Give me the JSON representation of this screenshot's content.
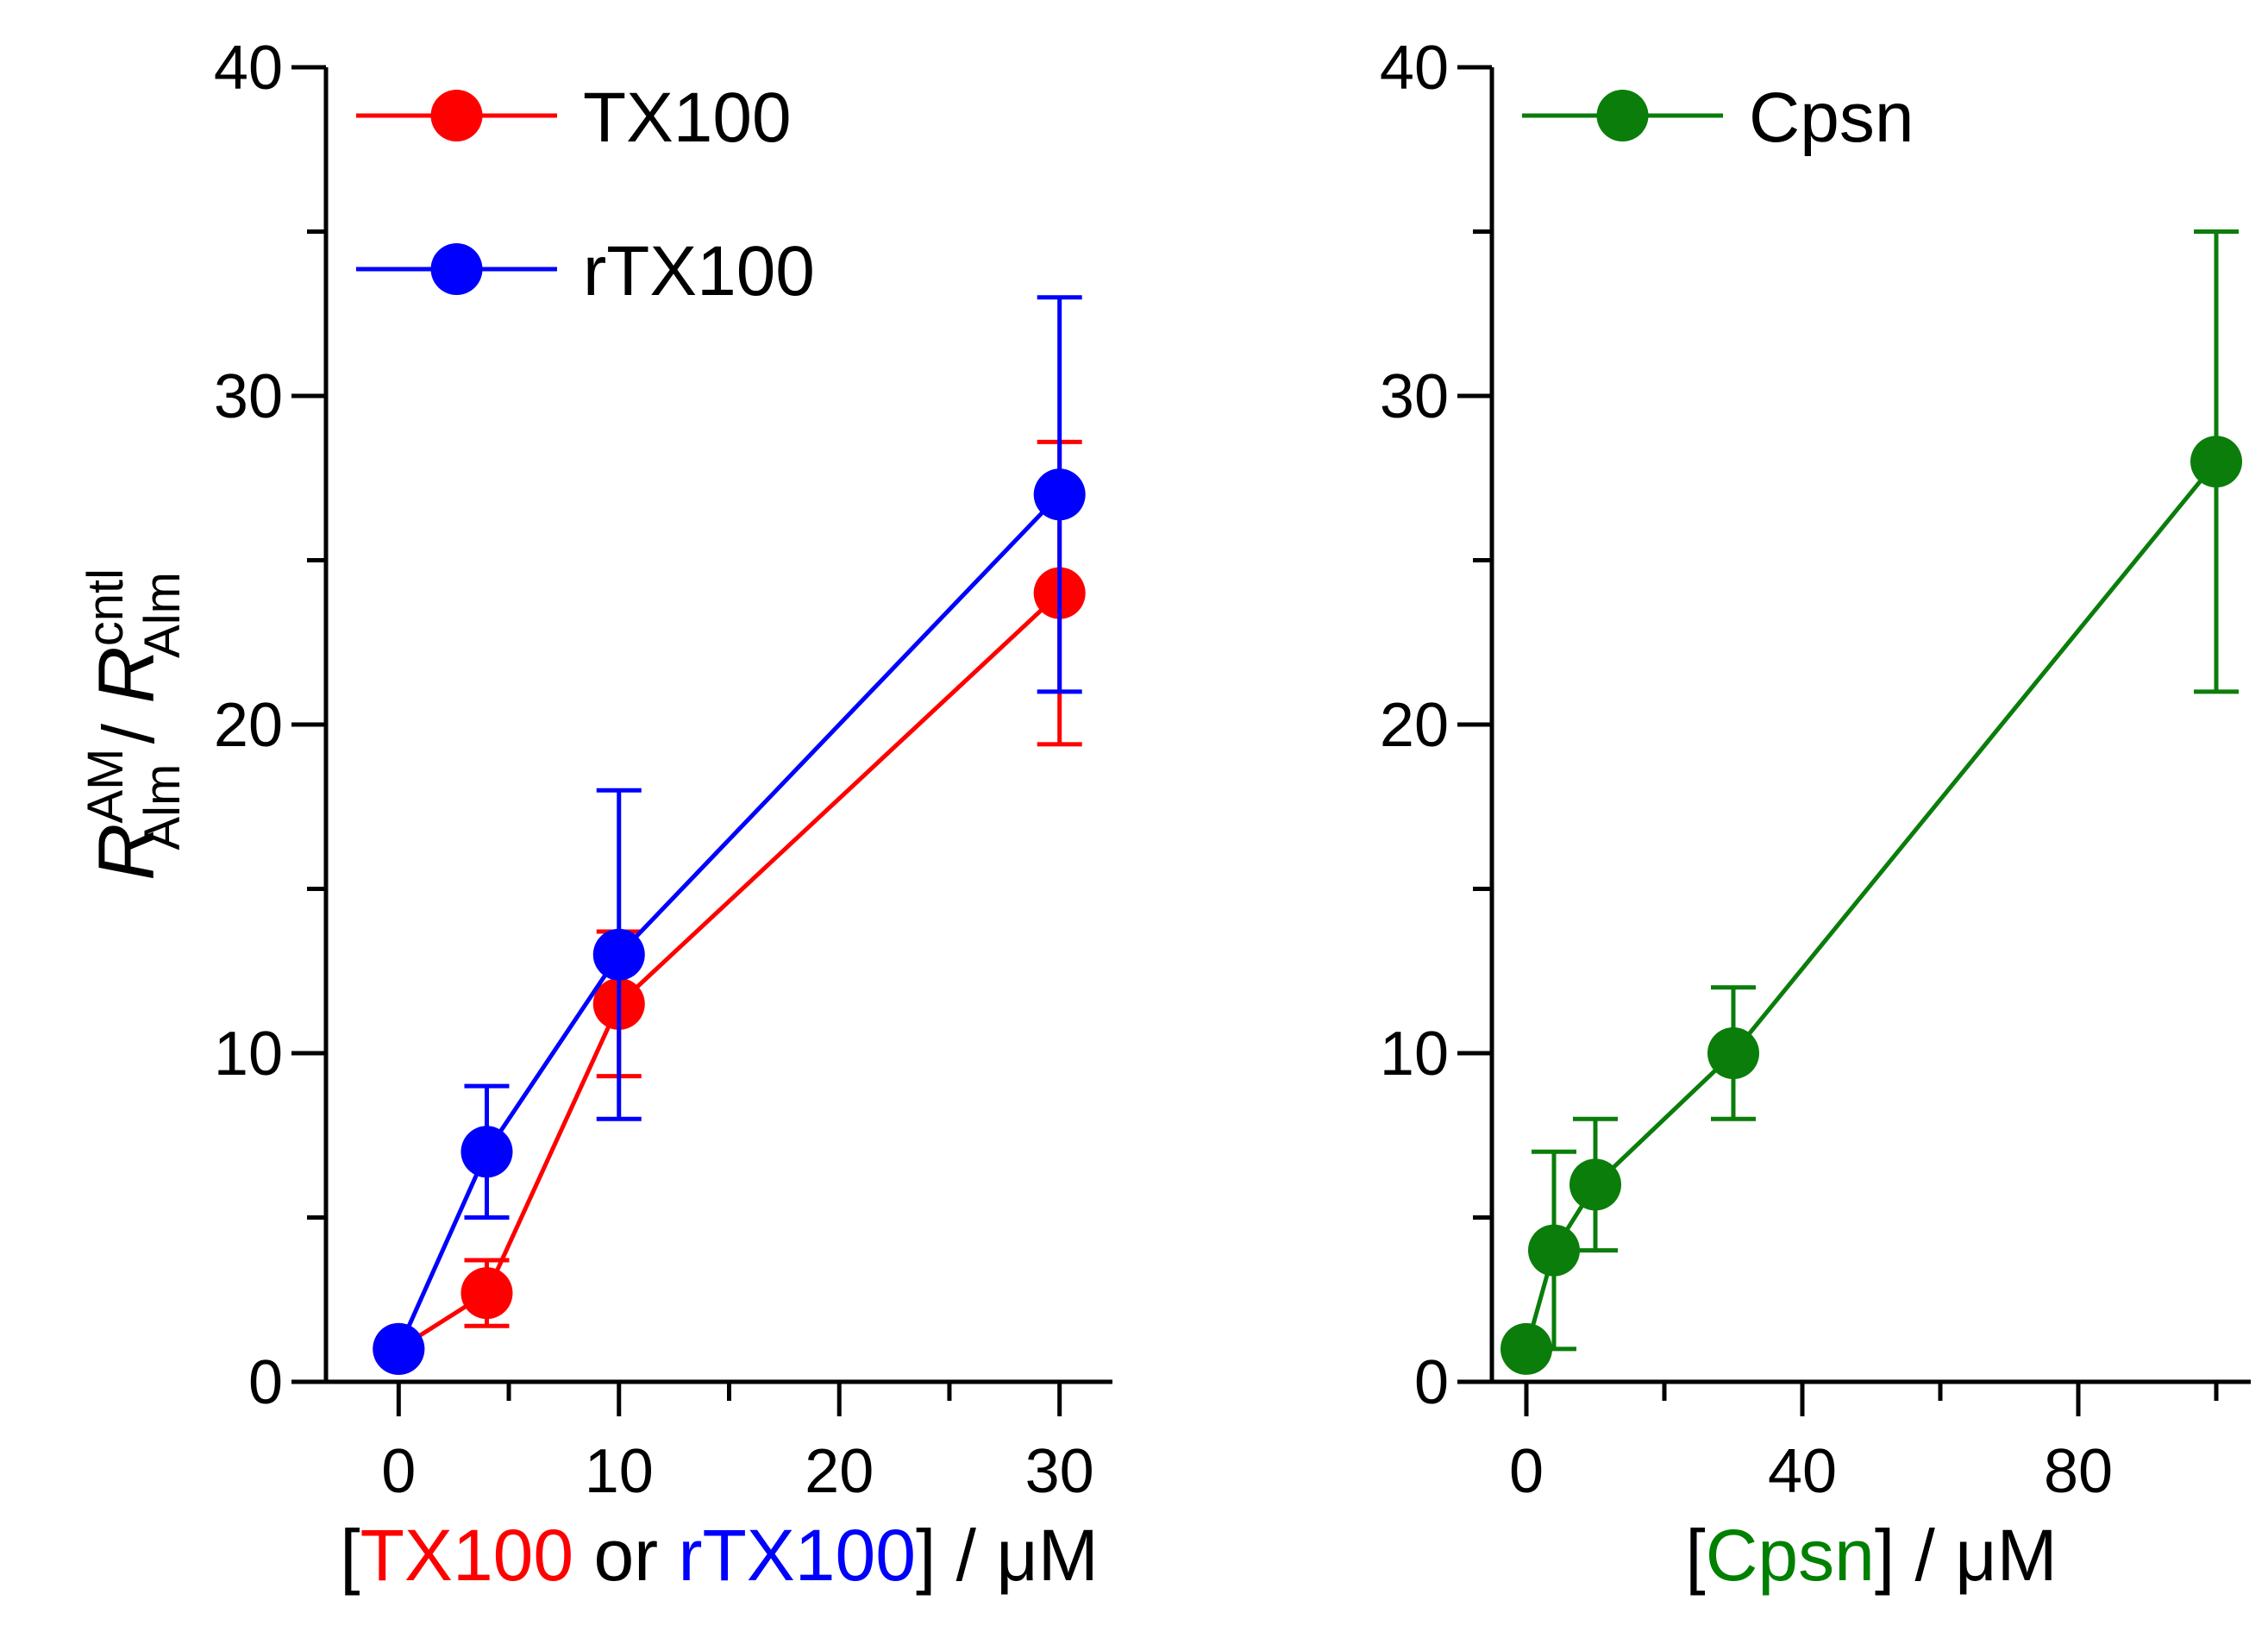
{
  "chart_data": [
    {
      "type": "line",
      "id": "left",
      "title": "",
      "xlim": [
        -3.3,
        32.4
      ],
      "ylim": [
        0,
        40
      ],
      "xticks": [
        0,
        10,
        20,
        30
      ],
      "xminor": [
        5,
        15,
        25
      ],
      "yticks": [
        0,
        10,
        20,
        30,
        40
      ],
      "yminor": [
        5,
        15,
        25,
        35
      ],
      "xlabel_parts": [
        {
          "text": "[",
          "color": "#000000"
        },
        {
          "text": "TX100",
          "color": "#ff0000"
        },
        {
          "text": " or ",
          "color": "#000000"
        },
        {
          "text": "rTX100",
          "color": "#0000ff"
        },
        {
          "text": "] / μM",
          "color": "#000000"
        }
      ],
      "ylabel": {
        "r1": "R",
        "sup1": "AM",
        "sub1": "Alm",
        "slash": "/",
        "r2": "R",
        "sup2": "cntl",
        "sub2": "Alm"
      },
      "legend": {
        "position": "top-left"
      },
      "series": [
        {
          "name": "TX100",
          "color": "#ff0000",
          "x": [
            0,
            4,
            10,
            30
          ],
          "y": [
            1.0,
            2.7,
            11.5,
            24.0
          ],
          "err": [
            0,
            1.0,
            2.2,
            4.6
          ]
        },
        {
          "name": "rTX100",
          "color": "#0000ff",
          "x": [
            0,
            4,
            10,
            30
          ],
          "y": [
            1.0,
            7.0,
            13.0,
            27.0
          ],
          "err": [
            0,
            2.0,
            5.0,
            6.0
          ]
        }
      ]
    },
    {
      "type": "line",
      "id": "right",
      "title": "",
      "xlim": [
        -5,
        105
      ],
      "ylim": [
        0,
        40
      ],
      "xticks": [
        0,
        40,
        80
      ],
      "xminor": [
        20,
        60,
        100
      ],
      "yticks": [
        0,
        10,
        20,
        30,
        40
      ],
      "yminor": [
        5,
        15,
        25,
        35
      ],
      "xlabel_parts": [
        {
          "text": "[",
          "color": "#000000"
        },
        {
          "text": "Cpsn",
          "color": "#008000"
        },
        {
          "text": "] / μM",
          "color": "#000000"
        }
      ],
      "legend": {
        "position": "top-left"
      },
      "series": [
        {
          "name": "Cpsn",
          "color": "#0a7d0a",
          "x": [
            0,
            4,
            10,
            30,
            100
          ],
          "y": [
            1.0,
            4.0,
            6.0,
            10.0,
            28.0
          ],
          "err": [
            0,
            3.0,
            2.0,
            2.0,
            7.0
          ]
        }
      ]
    }
  ]
}
